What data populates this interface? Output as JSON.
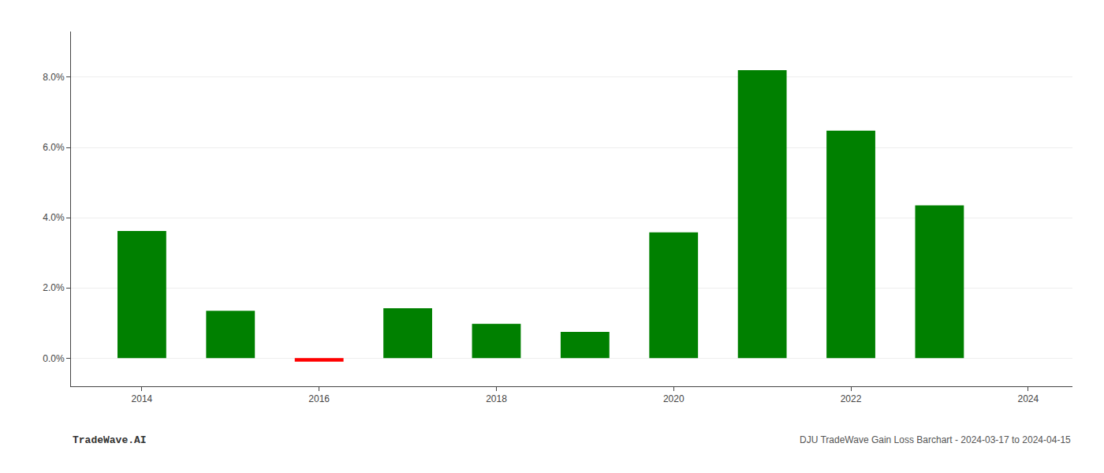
{
  "chart_data": {
    "type": "bar",
    "x": [
      2014,
      2015,
      2016,
      2017,
      2018,
      2019,
      2020,
      2021,
      2022,
      2023
    ],
    "values": [
      0.0362,
      0.0135,
      -0.001,
      0.0142,
      0.0098,
      0.0075,
      0.0358,
      0.082,
      0.0648,
      0.0435
    ],
    "colors": [
      "#008000",
      "#008000",
      "#ff0000",
      "#008000",
      "#008000",
      "#008000",
      "#008000",
      "#008000",
      "#008000",
      "#008000"
    ],
    "xlim": [
      2013.2,
      2024.5
    ],
    "xticks": [
      2014,
      2016,
      2018,
      2020,
      2022,
      2024
    ],
    "ylim": [
      -0.008,
      0.093
    ],
    "yticks": [
      {
        "value": 0.0,
        "label": "0.0%"
      },
      {
        "value": 0.02,
        "label": "2.0%"
      },
      {
        "value": 0.04,
        "label": "4.0%"
      },
      {
        "value": 0.06,
        "label": "6.0%"
      },
      {
        "value": 0.08,
        "label": "8.0%"
      }
    ],
    "grid": true,
    "annotations": [
      "TradeWave.AI",
      "DJU TradeWave Gain Loss Barchart - 2024-03-17 to 2024-04-15"
    ]
  }
}
